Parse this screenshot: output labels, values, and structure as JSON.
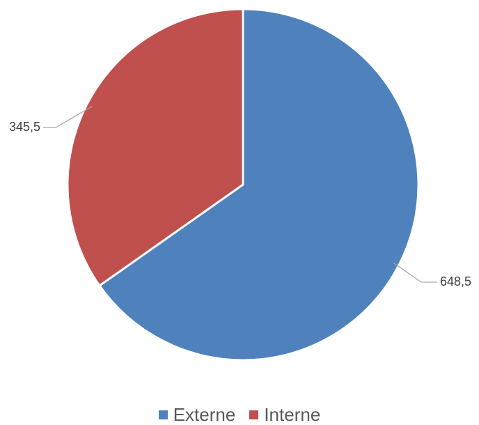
{
  "chart_data": {
    "type": "pie",
    "categories": [
      "Externe",
      "Interne"
    ],
    "values": [
      648.5,
      345.5
    ],
    "value_labels": [
      "648,5",
      "345,5"
    ],
    "colors": [
      "#4F81BD",
      "#C0504D"
    ],
    "start_angle_deg": 0,
    "direction": "clockwise",
    "slice_border_color": "#ffffff",
    "leader_line_color": "#A6A6A6",
    "legend_position": "bottom",
    "title": ""
  }
}
